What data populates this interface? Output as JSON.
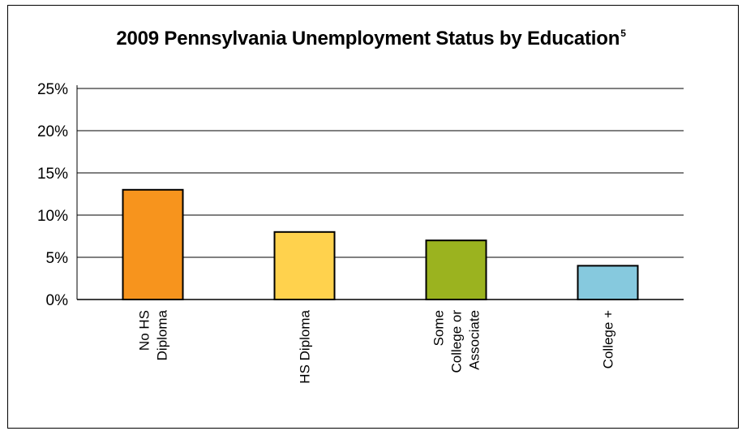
{
  "chart_data": {
    "type": "bar",
    "title": "2009 Pennsylvania Unemployment Status by Education",
    "title_superscript": "5",
    "xlabel": "",
    "ylabel": "",
    "categories": [
      "No HS Diploma",
      "HS Diploma",
      "Some College or Associate",
      "College +"
    ],
    "category_lines": [
      [
        "No HS",
        "Diploma"
      ],
      [
        "HS Diploma"
      ],
      [
        "Some",
        "College or",
        "Associate"
      ],
      [
        "College +"
      ]
    ],
    "values": [
      13,
      8,
      7,
      4
    ],
    "colors": [
      "#F7941D",
      "#FFD24D",
      "#9BB31F",
      "#86C9DE"
    ],
    "ylim": [
      0,
      25
    ],
    "yticks": [
      0,
      5,
      10,
      15,
      20,
      25
    ],
    "ytick_labels": [
      "0%",
      "5%",
      "10%",
      "15%",
      "20%",
      "25%"
    ],
    "grid": true,
    "legend": "none"
  }
}
